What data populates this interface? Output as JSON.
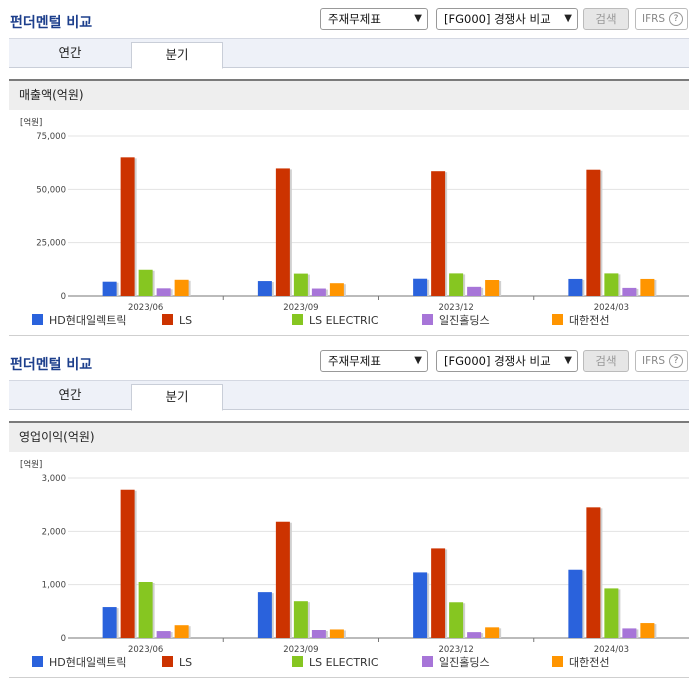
{
  "panels": [
    {
      "title": "펀더멘털 비교",
      "select1": "주재무제표",
      "select2": "[FG000] 경쟁사 비교",
      "search_label": "검색",
      "ifrs_label": "IFRS",
      "ifrs_help": "?",
      "tabs": [
        {
          "label": "연간"
        },
        {
          "label": "분기"
        }
      ],
      "section_title": "매출액(억원)",
      "unit_label": "[억원]",
      "chart_data": {
        "type": "bar",
        "title": "매출액(억원)",
        "ylabel": "[억원]",
        "ylim": [
          0,
          75000
        ],
        "yticks": [
          "0",
          "25,000",
          "50,000",
          "75,000"
        ],
        "categories": [
          "2023/06",
          "2023/09",
          "2023/12",
          "2024/03"
        ],
        "legend_position": "bottom",
        "grid": true,
        "series": [
          {
            "name": "HD현대일렉트릭",
            "color": "#2a62dc",
            "values": [
              6700,
              7000,
              8100,
              8000
            ]
          },
          {
            "name": "LS",
            "color": "#cc3300",
            "values": [
              65000,
              59800,
              58500,
              59200
            ]
          },
          {
            "name": "LS ELECTRIC",
            "color": "#86c621",
            "values": [
              12300,
              10500,
              10600,
              10600
            ]
          },
          {
            "name": "일진홀딩스",
            "color": "#a775d8",
            "values": [
              3600,
              3500,
              4300,
              3800
            ]
          },
          {
            "name": "대한전선",
            "color": "#ff9500",
            "values": [
              7600,
              6000,
              7500,
              8000
            ]
          }
        ]
      }
    },
    {
      "title": "펀더멘털 비교",
      "select1": "주재무제표",
      "select2": "[FG000] 경쟁사 비교",
      "search_label": "검색",
      "ifrs_label": "IFRS",
      "ifrs_help": "?",
      "tabs": [
        {
          "label": "연간"
        },
        {
          "label": "분기"
        }
      ],
      "section_title": "영업이익(억원)",
      "unit_label": "[억원]",
      "chart_data": {
        "type": "bar",
        "title": "영업이익(억원)",
        "ylabel": "[억원]",
        "ylim": [
          0,
          3000
        ],
        "yticks": [
          "0",
          "1,000",
          "2,000",
          "3,000"
        ],
        "categories": [
          "2023/06",
          "2023/09",
          "2023/12",
          "2024/03"
        ],
        "legend_position": "bottom",
        "grid": true,
        "series": [
          {
            "name": "HD현대일렉트릭",
            "color": "#2a62dc",
            "values": [
              580,
              860,
              1230,
              1280
            ]
          },
          {
            "name": "LS",
            "color": "#cc3300",
            "values": [
              2780,
              2180,
              1680,
              2450
            ]
          },
          {
            "name": "LS ELECTRIC",
            "color": "#86c621",
            "values": [
              1050,
              690,
              670,
              930
            ]
          },
          {
            "name": "일진홀딩스",
            "color": "#a775d8",
            "values": [
              130,
              150,
              110,
              180
            ]
          },
          {
            "name": "대한전선",
            "color": "#ff9500",
            "values": [
              240,
              160,
              200,
              280
            ]
          }
        ]
      }
    }
  ]
}
